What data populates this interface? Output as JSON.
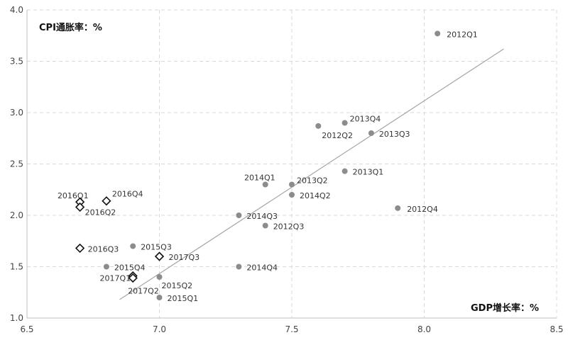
{
  "chart_data": {
    "type": "scatter",
    "xlabel": "GDP增长率：%",
    "ylabel": "CPI通胀率：%",
    "xlim": [
      6.5,
      8.5
    ],
    "ylim": [
      1.0,
      4.0
    ],
    "x_ticks": [
      "6.5",
      "7.0",
      "7.5",
      "8.0",
      "8.5"
    ],
    "y_ticks": [
      "1.0",
      "1.5",
      "2.0",
      "2.5",
      "3.0",
      "3.5",
      "4.0"
    ],
    "grid": true,
    "colors": {
      "circle": "#8c8c8c",
      "diamond_stroke": "#111111",
      "trend": "#a6a6a6",
      "grid": "#d9d9d9"
    },
    "series": [
      {
        "marker": "circle",
        "points": [
          {
            "label": "2012Q1",
            "x": 8.05,
            "y": 3.77
          },
          {
            "label": "2012Q2",
            "x": 7.6,
            "y": 2.87
          },
          {
            "label": "2012Q3",
            "x": 7.4,
            "y": 1.9
          },
          {
            "label": "2012Q4",
            "x": 7.9,
            "y": 2.07
          },
          {
            "label": "2013Q1",
            "x": 7.7,
            "y": 2.43
          },
          {
            "label": "2013Q2",
            "x": 7.5,
            "y": 2.3
          },
          {
            "label": "2013Q3",
            "x": 7.8,
            "y": 2.8
          },
          {
            "label": "2013Q4",
            "x": 7.7,
            "y": 2.9
          },
          {
            "label": "2014Q1",
            "x": 7.4,
            "y": 2.3
          },
          {
            "label": "2014Q2",
            "x": 7.5,
            "y": 2.2
          },
          {
            "label": "2014Q3",
            "x": 7.3,
            "y": 2.0
          },
          {
            "label": "2014Q4",
            "x": 7.3,
            "y": 1.5
          },
          {
            "label": "2015Q1",
            "x": 7.0,
            "y": 1.2
          },
          {
            "label": "2015Q2",
            "x": 7.0,
            "y": 1.4
          },
          {
            "label": "2015Q3",
            "x": 6.9,
            "y": 1.7
          },
          {
            "label": "2015Q4",
            "x": 6.8,
            "y": 1.5
          }
        ]
      },
      {
        "marker": "diamond",
        "points": [
          {
            "label": "2016Q1",
            "x": 6.7,
            "y": 2.13
          },
          {
            "label": "2016Q2",
            "x": 6.7,
            "y": 2.08
          },
          {
            "label": "2016Q3",
            "x": 6.7,
            "y": 1.68
          },
          {
            "label": "2016Q4",
            "x": 6.8,
            "y": 2.14
          },
          {
            "label": "2017Q1",
            "x": 6.9,
            "y": 1.41
          },
          {
            "label": "2017Q2",
            "x": 6.9,
            "y": 1.39
          },
          {
            "label": "2017Q3",
            "x": 7.0,
            "y": 1.6
          }
        ]
      }
    ],
    "trendline": {
      "x": [
        6.85,
        8.3
      ],
      "y": [
        1.18,
        3.62
      ]
    }
  }
}
